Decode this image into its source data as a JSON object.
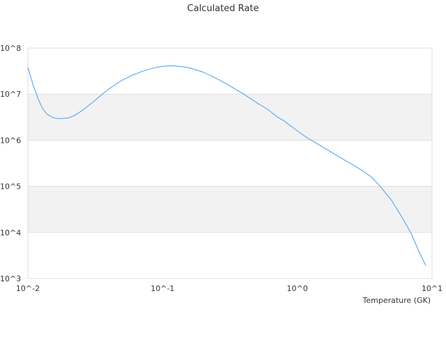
{
  "chart_data": {
    "type": "line",
    "title": "Calculated Rate",
    "xlabel": "Temperature (GK)",
    "ylabel": "",
    "x_scale": "log",
    "y_scale": "log",
    "xlim": [
      0.01,
      10
    ],
    "ylim": [
      1000,
      100000000
    ],
    "x_tick_labels": [
      "10^-2",
      "10^-1",
      "10^0",
      "10^1"
    ],
    "y_tick_labels": [
      "10^3",
      "10^4",
      "10^5",
      "10^6",
      "10^7",
      "10^8"
    ],
    "x_tick_values": [
      0.01,
      0.1,
      1,
      10
    ],
    "y_tick_values": [
      1000,
      10000,
      100000,
      1000000,
      10000000,
      100000000
    ],
    "grid": "alternating horizontal bands",
    "legend": "none",
    "series": [
      {
        "color": "#4a9de8",
        "x": [
          0.01,
          0.011,
          0.012,
          0.013,
          0.014,
          0.015,
          0.016,
          0.017,
          0.018,
          0.02,
          0.022,
          0.025,
          0.03,
          0.035,
          0.04,
          0.05,
          0.06,
          0.07,
          0.08,
          0.09,
          0.1,
          0.11,
          0.12,
          0.14,
          0.16,
          0.2,
          0.25,
          0.3,
          0.4,
          0.5,
          0.6,
          0.7,
          0.8,
          1.0,
          1.2,
          1.5,
          2.0,
          2.5,
          3.0,
          3.5,
          4.0,
          5.0,
          6.0,
          7.0,
          8.0,
          9.0
        ],
        "y": [
          38000000,
          15000000,
          7500000,
          4600000,
          3600000,
          3200000,
          3000000,
          2950000,
          2950000,
          3050000,
          3400000,
          4300000,
          6500000,
          9500000,
          13000000,
          20000000,
          26000000,
          31000000,
          35000000,
          38000000,
          40000000,
          41000000,
          41000000,
          39500000,
          37000000,
          30000000,
          22000000,
          16500000,
          10000000,
          6500000,
          4700000,
          3300000,
          2600000,
          1600000,
          1100000,
          750000,
          450000,
          310000,
          225000,
          165000,
          110000,
          50000,
          21000,
          9500,
          3800,
          1900
        ]
      }
    ]
  }
}
